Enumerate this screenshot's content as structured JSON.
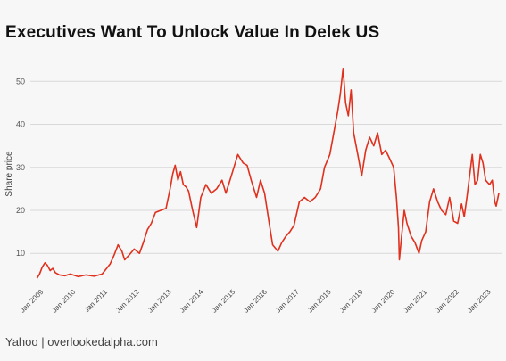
{
  "title": "Executives Want To Unlock Value In Delek US",
  "source": "Yahoo | overlookedalpha.com",
  "chart_data": {
    "type": "line",
    "title": "Executives Want To Unlock Value In Delek US",
    "xlabel": "",
    "ylabel": "Share price",
    "ylim": [
      3,
      54
    ],
    "yticks": [
      10,
      20,
      30,
      40,
      50
    ],
    "xlim": [
      "2008-09-01",
      "2023-06-01"
    ],
    "grid": true,
    "line_color": "#e0301e",
    "x_tick_labels": [
      "Jan 2009",
      "Jan 2010",
      "Jan 2011",
      "Jan 2012",
      "Jan 2013",
      "Jan 2014",
      "Jan 2015",
      "Jan 2016",
      "Jan 2017",
      "Jan 2018",
      "Jan 2019",
      "Jan 2020",
      "Jan 2021",
      "Jan 2022",
      "Jan 2023"
    ],
    "x_tick_dates": [
      "2009-01-01",
      "2010-01-01",
      "2011-01-01",
      "2012-01-01",
      "2013-01-01",
      "2014-01-01",
      "2015-01-01",
      "2016-01-01",
      "2017-01-01",
      "2018-01-01",
      "2019-01-01",
      "2020-01-01",
      "2021-01-01",
      "2022-01-01",
      "2023-01-01"
    ],
    "series": [
      {
        "x": [
          "2008-11-15",
          "2008-12-15",
          "2009-01-15",
          "2009-02-15",
          "2009-03-15",
          "2009-04-15",
          "2009-05-15",
          "2009-06-15",
          "2009-08-01",
          "2009-10-01",
          "2009-12-01",
          "2010-03-01",
          "2010-06-01",
          "2010-09-01",
          "2010-12-01",
          "2011-03-01",
          "2011-04-15",
          "2011-06-01",
          "2011-07-15",
          "2011-08-15",
          "2011-10-01",
          "2011-12-01",
          "2012-02-01",
          "2012-03-15",
          "2012-05-01",
          "2012-06-15",
          "2012-08-01",
          "2012-10-01",
          "2012-12-01",
          "2013-01-15",
          "2013-02-15",
          "2013-03-15",
          "2013-04-15",
          "2013-05-15",
          "2013-06-15",
          "2013-07-15",
          "2013-08-15",
          "2013-10-01",
          "2013-11-15",
          "2014-01-01",
          "2014-03-01",
          "2014-05-01",
          "2014-07-01",
          "2014-09-01",
          "2014-10-15",
          "2014-12-01",
          "2015-01-15",
          "2015-03-01",
          "2015-05-01",
          "2015-06-15",
          "2015-08-01",
          "2015-10-01",
          "2015-11-15",
          "2016-01-01",
          "2016-02-15",
          "2016-04-01",
          "2016-06-01",
          "2016-07-15",
          "2016-09-01",
          "2016-10-15",
          "2016-12-01",
          "2017-02-01",
          "2017-04-01",
          "2017-06-01",
          "2017-08-01",
          "2017-10-01",
          "2017-11-15",
          "2018-01-15",
          "2018-03-01",
          "2018-04-15",
          "2018-05-15",
          "2018-06-15",
          "2018-07-15",
          "2018-08-15",
          "2018-09-15",
          "2018-10-15",
          "2018-12-01",
          "2019-01-15",
          "2019-03-01",
          "2019-04-15",
          "2019-06-01",
          "2019-07-15",
          "2019-09-01",
          "2019-10-15",
          "2019-12-01",
          "2020-01-15",
          "2020-02-15",
          "2020-03-10",
          "2020-03-20",
          "2020-04-15",
          "2020-05-15",
          "2020-06-15",
          "2020-08-01",
          "2020-09-15",
          "2020-10-30",
          "2020-12-01",
          "2021-01-15",
          "2021-03-01",
          "2021-04-15",
          "2021-06-01",
          "2021-07-15",
          "2021-09-01",
          "2021-10-15",
          "2021-12-01",
          "2022-01-15",
          "2022-03-01",
          "2022-04-01",
          "2022-05-01",
          "2022-06-01",
          "2022-07-01",
          "2022-08-01",
          "2022-09-01",
          "2022-10-01",
          "2022-11-01",
          "2022-12-01",
          "2023-01-15",
          "2023-02-15",
          "2023-03-15",
          "2023-04-01",
          "2023-05-01"
        ],
        "y": [
          4.2,
          5.2,
          6.8,
          7.8,
          7.2,
          6.0,
          6.5,
          5.5,
          5.0,
          4.8,
          5.2,
          4.6,
          5.0,
          4.7,
          5.2,
          7.5,
          9.5,
          12.0,
          10.5,
          8.5,
          9.5,
          11.0,
          10.0,
          12.5,
          15.5,
          17.0,
          19.5,
          20.0,
          20.5,
          25.0,
          28.5,
          30.5,
          27.0,
          29.0,
          26.0,
          25.5,
          24.5,
          20.0,
          16.0,
          23.0,
          26.0,
          24.0,
          25.0,
          27.0,
          24.0,
          27.0,
          30.0,
          33.0,
          31.0,
          30.5,
          27.0,
          23.0,
          27.0,
          24.0,
          18.0,
          12.0,
          10.5,
          12.5,
          14.0,
          15.0,
          16.5,
          22.0,
          23.0,
          22.0,
          23.0,
          25.0,
          30.0,
          33.0,
          38.0,
          43.0,
          47.0,
          53.0,
          45.0,
          42.0,
          48.0,
          38.0,
          33.0,
          28.0,
          34.0,
          37.0,
          35.0,
          38.0,
          33.0,
          34.0,
          32.0,
          30.0,
          23.0,
          16.0,
          8.5,
          14.0,
          20.0,
          17.0,
          14.0,
          12.5,
          10.0,
          13.0,
          15.0,
          22.0,
          25.0,
          22.0,
          20.0,
          19.0,
          23.0,
          17.5,
          17.0,
          21.5,
          18.5,
          23.0,
          28.0,
          33.0,
          26.0,
          27.0,
          33.0,
          31.0,
          27.0,
          26.0,
          27.0,
          22.0,
          21.0,
          24.0
        ]
      }
    ]
  }
}
